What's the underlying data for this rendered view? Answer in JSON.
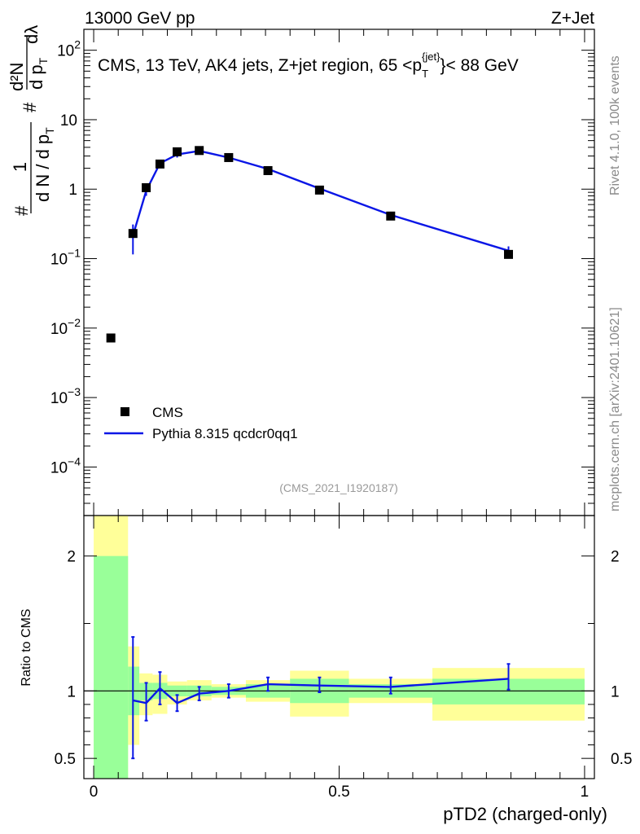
{
  "header": {
    "left": "13000 GeV pp",
    "right": "Z+Jet"
  },
  "side_text": {
    "rivet": "Rivet 4.1.0,  100k events",
    "mcplots": "mcplots.cern.ch [arXiv:2401.10621]"
  },
  "analysis_tag": "(CMS_2021_I1920187)",
  "colors": {
    "data_marker": "#000000",
    "mc_line": "#0a16e6",
    "band_inner": "#99ff99",
    "band_outer": "#ffff99"
  },
  "chart_data": [
    {
      "type": "scatter",
      "name": "main-panel",
      "title": "CMS, 13 TeV, AK4 jets, Z+jet region, 65 <p_T^{jet}< 88 GeV",
      "title_parts": {
        "prefix": "CMS, 13 TeV, AK4 jets, Z+jet region, 65 <p",
        "sup": "{jet}",
        "sub": "T",
        "suffix": "}< 88 GeV"
      },
      "ylabel": "1/dN / dp_T # d²N/dp_T dλ",
      "ylabel_parts": {
        "one": "1",
        "hash": "#",
        "denom": "d N / d p",
        "sub": "T",
        "d2n": "d²N",
        "hash2": "#",
        "dpt": "d p",
        "dlam": "dλ"
      },
      "yscale": "log",
      "ylim": [
        2e-05,
        200
      ],
      "xlim": [
        -0.02,
        1.02
      ],
      "y_ticks": [
        {
          "value": 100,
          "label": "10",
          "exp": "2"
        },
        {
          "value": 10,
          "label": "10",
          "exp": ""
        },
        {
          "value": 1,
          "label": "1",
          "exp": ""
        },
        {
          "value": 0.1,
          "label": "10",
          "exp": "−1"
        },
        {
          "value": 0.01,
          "label": "10",
          "exp": "−2"
        },
        {
          "value": 0.001,
          "label": "10",
          "exp": "−3"
        },
        {
          "value": 0.0001,
          "label": "10",
          "exp": "−4"
        }
      ],
      "legend": {
        "position": "bottom-left",
        "entries": [
          "CMS",
          "Pythia 8.315 qcdcr0qq1"
        ]
      },
      "series": [
        {
          "name": "CMS",
          "kind": "markers",
          "x": [
            0.035,
            0.08,
            0.107,
            0.135,
            0.17,
            0.215,
            0.275,
            0.355,
            0.46,
            0.605,
            0.845
          ],
          "y": [
            0.0072,
            0.23,
            1.05,
            2.3,
            3.45,
            3.6,
            2.85,
            1.85,
            0.97,
            0.41,
            0.115
          ]
        },
        {
          "name": "Pythia 8.315 qcdcr0qq1",
          "kind": "line",
          "x": [
            0.08,
            0.107,
            0.135,
            0.17,
            0.215,
            0.275,
            0.355,
            0.46,
            0.605,
            0.845
          ],
          "y": [
            0.215,
            0.95,
            2.35,
            3.15,
            3.55,
            2.85,
            1.95,
            1.02,
            0.425,
            0.13
          ],
          "err_low": [
            0.115,
            0.8,
            2.05,
            2.85,
            3.3,
            2.7,
            1.85,
            0.96,
            0.4,
            0.11
          ],
          "err_high": [
            0.31,
            1.1,
            2.6,
            3.4,
            3.8,
            3.0,
            2.05,
            1.08,
            0.45,
            0.15
          ]
        }
      ]
    },
    {
      "type": "line",
      "name": "ratio-panel",
      "ylabel": "Ratio to CMS",
      "xlabel": "pTD2 (charged-only)",
      "ylim": [
        0.35,
        2.3
      ],
      "xlim": [
        -0.02,
        1.02
      ],
      "x_ticks": [
        {
          "value": 0,
          "label": "0"
        },
        {
          "value": 0.5,
          "label": "0.5"
        },
        {
          "value": 1,
          "label": "1"
        }
      ],
      "y_ticks": [
        {
          "value": 2,
          "label": "2"
        },
        {
          "value": 1,
          "label": "1"
        },
        {
          "value": 0.5,
          "label": "0.5"
        }
      ],
      "bands": {
        "edges": [
          0,
          0.07,
          0.093,
          0.12,
          0.15,
          0.19,
          0.24,
          0.31,
          0.4,
          0.52,
          0.69,
          1.0
        ],
        "inner_low": [
          0.35,
          0.82,
          0.93,
          0.94,
          0.96,
          0.96,
          0.97,
          0.95,
          0.91,
          0.95,
          0.9
        ],
        "inner_high": [
          2.0,
          1.18,
          1.06,
          1.06,
          1.04,
          1.04,
          1.03,
          1.05,
          1.09,
          1.05,
          1.09
        ],
        "outer_low": [
          0.35,
          0.6,
          0.82,
          0.83,
          0.9,
          0.93,
          0.95,
          0.92,
          0.81,
          0.91,
          0.78
        ],
        "outer_high": [
          2.3,
          1.33,
          1.13,
          1.12,
          1.07,
          1.08,
          1.05,
          1.08,
          1.15,
          1.09,
          1.17
        ]
      },
      "series": [
        {
          "name": "Pythia 8.315 qcdcr0qq1",
          "x": [
            0.08,
            0.107,
            0.135,
            0.17,
            0.215,
            0.275,
            0.355,
            0.46,
            0.605,
            0.845
          ],
          "y": [
            0.93,
            0.91,
            1.02,
            0.91,
            0.98,
            1.0,
            1.05,
            1.04,
            1.03,
            1.09
          ],
          "err_low": [
            0.5,
            0.78,
            0.9,
            0.85,
            0.93,
            0.95,
            1.0,
            0.99,
            0.98,
            1.01
          ],
          "err_high": [
            1.4,
            1.06,
            1.14,
            0.97,
            1.03,
            1.05,
            1.1,
            1.1,
            1.1,
            1.2
          ]
        }
      ]
    }
  ]
}
